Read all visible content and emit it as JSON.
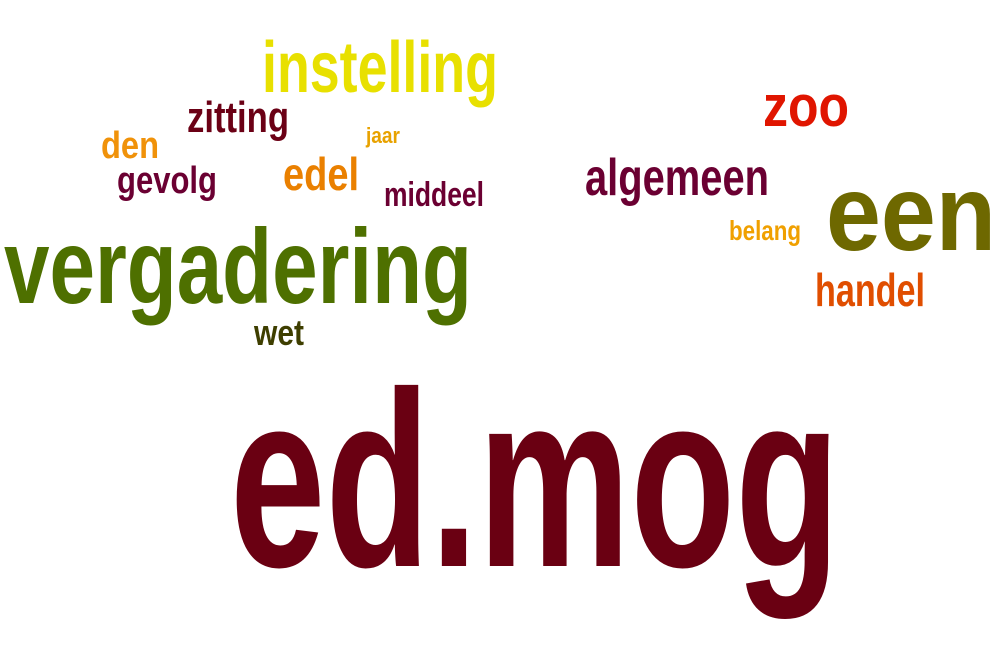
{
  "words": [
    {
      "id": "instelling",
      "text": "instelling",
      "color": "#e8e000"
    },
    {
      "id": "zitting",
      "text": "zitting",
      "color": "#6b0015"
    },
    {
      "id": "den",
      "text": "den",
      "color": "#f0920a"
    },
    {
      "id": "jaar",
      "text": "jaar",
      "color": "#e8a200"
    },
    {
      "id": "edel",
      "text": "edel",
      "color": "#ea8000"
    },
    {
      "id": "gevolg",
      "text": "gevolg",
      "color": "#6b0032"
    },
    {
      "id": "middeel",
      "text": "middeel",
      "color": "#6b0032"
    },
    {
      "id": "vergadering",
      "text": "vergadering",
      "color": "#4e7000"
    },
    {
      "id": "wet",
      "text": "wet",
      "color": "#3e3e00"
    },
    {
      "id": "zoo",
      "text": "zoo",
      "color": "#e01500"
    },
    {
      "id": "algemeen",
      "text": "algemeen",
      "color": "#6b0032"
    },
    {
      "id": "een",
      "text": "een",
      "color": "#6e6800"
    },
    {
      "id": "belang",
      "text": "belang",
      "color": "#f0a000"
    },
    {
      "id": "handel",
      "text": "handel",
      "color": "#e04e00"
    },
    {
      "id": "ed-mog",
      "text": "ed.mog",
      "color": "#6a0012"
    }
  ]
}
